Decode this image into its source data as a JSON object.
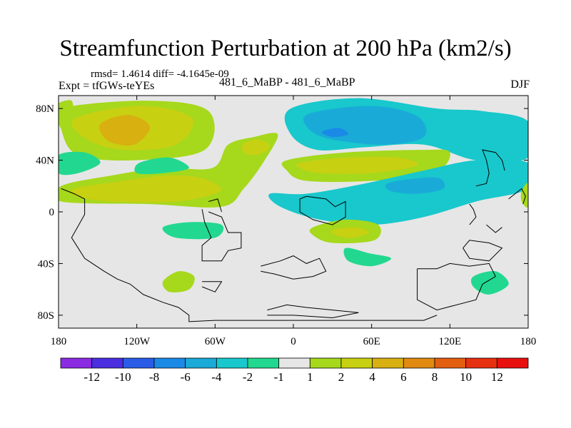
{
  "chart_data": {
    "type": "contour-map",
    "title": "Streamfunction Perturbation at 200 hPa (km2/s)",
    "stats_label": "rmsd= 1.4614 diff= -4.1645e-09",
    "left_subtitle": "Expt = tfGWs-teYEs",
    "center_subtitle": "481_6_MaBP - 481_6_MaBP",
    "right_subtitle": "DJF",
    "x_ticks": [
      "180",
      "120W",
      "60W",
      "0",
      "60E",
      "120E",
      "180"
    ],
    "y_ticks": [
      "80N",
      "40N",
      "0",
      "40S",
      "80S"
    ],
    "xlim": [
      -180,
      180
    ],
    "ylim": [
      -90,
      90
    ],
    "colorbar": {
      "labels": [
        "-12",
        "-10",
        "-8",
        "-6",
        "-4",
        "-2",
        "-1",
        "1",
        "2",
        "4",
        "6",
        "8",
        "10",
        "12"
      ],
      "colors": [
        "#8a2be2",
        "#4a2ee0",
        "#2a5ce8",
        "#1a8ae6",
        "#1aaad8",
        "#18c8cc",
        "#22d890",
        "#e6e6e6",
        "#a6d81c",
        "#c8d012",
        "#d8b010",
        "#e08a10",
        "#e45e10",
        "#e63010",
        "#e8100e"
      ]
    },
    "regions": [
      {
        "level": 2,
        "pts": [
          [
            -178,
            80
          ],
          [
            -110,
            86
          ],
          [
            -65,
            78
          ],
          [
            -68,
            48
          ],
          [
            -120,
            40
          ],
          [
            -165,
            44
          ],
          [
            -178,
            64
          ]
        ]
      },
      {
        "level": 4,
        "pts": [
          [
            -168,
            72
          ],
          [
            -118,
            82
          ],
          [
            -78,
            73
          ],
          [
            -90,
            52
          ],
          [
            -130,
            48
          ],
          [
            -158,
            56
          ]
        ]
      },
      {
        "level": 6,
        "pts": [
          [
            -148,
            68
          ],
          [
            -126,
            75
          ],
          [
            -110,
            66
          ],
          [
            -122,
            52
          ],
          [
            -142,
            55
          ]
        ]
      },
      {
        "level": 2,
        "pts": [
          [
            -178,
            20
          ],
          [
            -140,
            28
          ],
          [
            -100,
            34
          ],
          [
            -62,
            34
          ],
          [
            -50,
            52
          ],
          [
            -30,
            58
          ],
          [
            -12,
            60
          ],
          [
            -22,
            40
          ],
          [
            -38,
            18
          ],
          [
            -55,
            4
          ],
          [
            -110,
            6
          ],
          [
            -178,
            8
          ]
        ]
      },
      {
        "level": 4,
        "pts": [
          [
            -168,
            18
          ],
          [
            -130,
            24
          ],
          [
            -98,
            28
          ],
          [
            -70,
            26
          ],
          [
            -56,
            16
          ],
          [
            -90,
            8
          ],
          [
            -140,
            8
          ],
          [
            -165,
            12
          ]
        ]
      },
      {
        "level": 4,
        "pts": [
          [
            -38,
            53
          ],
          [
            -26,
            56
          ],
          [
            -18,
            50
          ],
          [
            -28,
            44
          ],
          [
            -38,
            46
          ]
        ]
      },
      {
        "level": -1,
        "pts": [
          [
            -180,
            44
          ],
          [
            -160,
            46
          ],
          [
            -148,
            38
          ],
          [
            -165,
            30
          ],
          [
            -180,
            30
          ]
        ]
      },
      {
        "level": -1,
        "pts": [
          [
            -118,
            38
          ],
          [
            -95,
            42
          ],
          [
            -80,
            34
          ],
          [
            -100,
            30
          ],
          [
            -120,
            30
          ]
        ]
      },
      {
        "level": -2,
        "pts": [
          [
            -2,
            80
          ],
          [
            50,
            88
          ],
          [
            110,
            80
          ],
          [
            145,
            78
          ],
          [
            180,
            70
          ],
          [
            180,
            42
          ],
          [
            140,
            40
          ],
          [
            100,
            52
          ],
          [
            55,
            50
          ],
          [
            18,
            48
          ],
          [
            -2,
            60
          ]
        ]
      },
      {
        "level": -4,
        "pts": [
          [
            12,
            76
          ],
          [
            60,
            82
          ],
          [
            95,
            74
          ],
          [
            100,
            58
          ],
          [
            70,
            52
          ],
          [
            30,
            56
          ],
          [
            12,
            64
          ]
        ]
      },
      {
        "level": -6,
        "pts": [
          [
            22,
            62
          ],
          [
            35,
            65
          ],
          [
            42,
            60
          ],
          [
            30,
            58
          ]
        ]
      },
      {
        "level": 2,
        "pts": [
          [
            -5,
            40
          ],
          [
            40,
            46
          ],
          [
            100,
            48
          ],
          [
            120,
            46
          ],
          [
            108,
            30
          ],
          [
            60,
            24
          ],
          [
            10,
            24
          ],
          [
            -5,
            32
          ]
        ]
      },
      {
        "level": 4,
        "pts": [
          [
            5,
            38
          ],
          [
            40,
            42
          ],
          [
            80,
            42
          ],
          [
            95,
            36
          ],
          [
            60,
            30
          ],
          [
            20,
            30
          ],
          [
            5,
            34
          ]
        ]
      },
      {
        "level": -2,
        "pts": [
          [
            -18,
            14
          ],
          [
            10,
            14
          ],
          [
            55,
            22
          ],
          [
            100,
            32
          ],
          [
            140,
            40
          ],
          [
            180,
            38
          ],
          [
            180,
            18
          ],
          [
            140,
            8
          ],
          [
            100,
            -4
          ],
          [
            60,
            -10
          ],
          [
            20,
            -6
          ],
          [
            -10,
            4
          ]
        ]
      },
      {
        "level": -4,
        "pts": [
          [
            72,
            22
          ],
          [
            95,
            26
          ],
          [
            112,
            26
          ],
          [
            115,
            18
          ],
          [
            95,
            14
          ],
          [
            75,
            16
          ]
        ]
      },
      {
        "level": 2,
        "pts": [
          [
            15,
            -12
          ],
          [
            40,
            -6
          ],
          [
            65,
            -10
          ],
          [
            62,
            -22
          ],
          [
            30,
            -24
          ],
          [
            15,
            -18
          ]
        ]
      },
      {
        "level": 4,
        "pts": [
          [
            30,
            -14
          ],
          [
            48,
            -12
          ],
          [
            58,
            -16
          ],
          [
            45,
            -20
          ],
          [
            32,
            -18
          ]
        ]
      },
      {
        "level": -1,
        "pts": [
          [
            -100,
            -12
          ],
          [
            -80,
            -8
          ],
          [
            -55,
            -10
          ],
          [
            -60,
            -20
          ],
          [
            -90,
            -20
          ]
        ]
      },
      {
        "level": -1,
        "pts": [
          [
            40,
            -28
          ],
          [
            58,
            -32
          ],
          [
            75,
            -36
          ],
          [
            60,
            -42
          ],
          [
            42,
            -38
          ]
        ]
      },
      {
        "level": 2,
        "pts": [
          [
            -100,
            -54
          ],
          [
            -88,
            -46
          ],
          [
            -76,
            -50
          ],
          [
            -80,
            -60
          ],
          [
            -95,
            -62
          ]
        ]
      },
      {
        "level": -1,
        "pts": [
          [
            138,
            -50
          ],
          [
            155,
            -46
          ],
          [
            165,
            -56
          ],
          [
            150,
            -64
          ],
          [
            138,
            -58
          ]
        ]
      },
      {
        "level": 2,
        "pts": [
          [
            -180,
            84
          ],
          [
            -170,
            86
          ],
          [
            -170,
            76
          ],
          [
            -180,
            78
          ]
        ]
      },
      {
        "level": 2,
        "pts": [
          [
            175,
            16
          ],
          [
            180,
            22
          ],
          [
            180,
            4
          ],
          [
            175,
            8
          ]
        ]
      }
    ],
    "coastlines": [
      [
        [
          -178,
          18
        ],
        [
          -168,
          14
        ],
        [
          -160,
          10
        ],
        [
          -160,
          -2
        ],
        [
          -170,
          -20
        ],
        [
          -160,
          -36
        ],
        [
          -145,
          -46
        ],
        [
          -135,
          -52
        ],
        [
          -125,
          -56
        ],
        [
          -115,
          -64
        ],
        [
          -100,
          -70
        ],
        [
          -88,
          -74
        ],
        [
          -80,
          -80
        ],
        [
          -80,
          -85
        ],
        [
          -60,
          -84
        ],
        [
          -20,
          -84
        ],
        [
          40,
          -84
        ],
        [
          100,
          -84
        ],
        [
          110,
          -80
        ]
      ],
      [
        [
          -65,
          0
        ],
        [
          -55,
          -4
        ],
        [
          -50,
          -16
        ],
        [
          -40,
          -16
        ],
        [
          -40,
          -28
        ],
        [
          -50,
          -30
        ],
        [
          -55,
          -38
        ],
        [
          -70,
          -38
        ],
        [
          -70,
          -26
        ],
        [
          -63,
          -20
        ],
        [
          -68,
          -8
        ],
        [
          -70,
          2
        ]
      ],
      [
        [
          -65,
          8
        ],
        [
          -58,
          10
        ],
        [
          -55,
          0
        ]
      ],
      [
        [
          -25,
          -42
        ],
        [
          -10,
          -38
        ],
        [
          0,
          -34
        ],
        [
          10,
          -40
        ],
        [
          20,
          -36
        ],
        [
          25,
          -46
        ],
        [
          15,
          -50
        ],
        [
          0,
          -52
        ],
        [
          -15,
          -48
        ],
        [
          -25,
          -46
        ]
      ],
      [
        [
          5,
          10
        ],
        [
          10,
          12
        ],
        [
          25,
          10
        ],
        [
          32,
          4
        ],
        [
          40,
          8
        ],
        [
          40,
          -4
        ],
        [
          30,
          -10
        ],
        [
          15,
          -6
        ],
        [
          5,
          0
        ],
        [
          5,
          10
        ]
      ],
      [
        [
          -20,
          -76
        ],
        [
          -5,
          -72
        ],
        [
          10,
          -74
        ],
        [
          30,
          -76
        ],
        [
          50,
          -78
        ],
        [
          30,
          -82
        ],
        [
          0,
          -80
        ],
        [
          -20,
          -80
        ]
      ],
      [
        [
          -70,
          -58
        ],
        [
          -60,
          -62
        ],
        [
          -55,
          -54
        ],
        [
          -70,
          -54
        ]
      ],
      [
        [
          95,
          -44
        ],
        [
          110,
          -44
        ],
        [
          120,
          -40
        ],
        [
          135,
          -42
        ],
        [
          150,
          -40
        ],
        [
          155,
          -50
        ],
        [
          145,
          -56
        ],
        [
          140,
          -68
        ],
        [
          110,
          -76
        ],
        [
          95,
          -68
        ],
        [
          95,
          -44
        ]
      ],
      [
        [
          130,
          -28
        ],
        [
          135,
          -22
        ],
        [
          150,
          -24
        ],
        [
          160,
          -28
        ],
        [
          150,
          -38
        ],
        [
          135,
          -36
        ],
        [
          130,
          -28
        ]
      ],
      [
        [
          140,
          20
        ],
        [
          148,
          22
        ],
        [
          150,
          30
        ],
        [
          148,
          40
        ],
        [
          145,
          48
        ],
        [
          155,
          46
        ],
        [
          160,
          40
        ],
        [
          162,
          32
        ]
      ],
      [
        [
          165,
          10
        ],
        [
          170,
          14
        ],
        [
          175,
          18
        ],
        [
          178,
          12
        ],
        [
          176,
          6
        ]
      ],
      [
        [
          135,
          6
        ],
        [
          138,
          2
        ],
        [
          140,
          -4
        ],
        [
          135,
          -10
        ]
      ],
      [
        [
          148,
          -10
        ],
        [
          155,
          -16
        ],
        [
          160,
          -12
        ]
      ]
    ]
  }
}
